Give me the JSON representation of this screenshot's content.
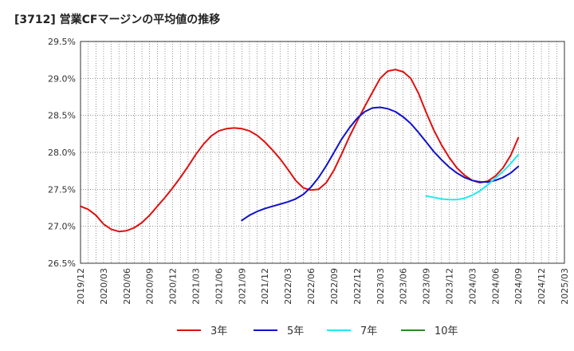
{
  "title": "[3712]  営業CFマージンの平均値の推移",
  "chart_data": {
    "type": "line",
    "title": "[3712]  営業CFマージンの平均値の推移",
    "xlabel": "",
    "ylabel": "",
    "ylim": [
      26.5,
      29.5
    ],
    "grid": true,
    "legend_position": "bottom",
    "x_ticks": [
      "2019/12",
      "2020/03",
      "2020/06",
      "2020/09",
      "2020/12",
      "2021/03",
      "2021/06",
      "2021/09",
      "2021/12",
      "2022/03",
      "2022/06",
      "2022/09",
      "2022/12",
      "2023/03",
      "2023/06",
      "2023/09",
      "2023/12",
      "2024/03",
      "2024/06",
      "2024/09",
      "2024/12",
      "2025/03"
    ],
    "y_ticks": [
      "26.5%",
      "27.0%",
      "27.5%",
      "28.0%",
      "28.5%",
      "29.0%",
      "29.5%"
    ],
    "y_tick_values": [
      26.5,
      27.0,
      27.5,
      28.0,
      28.5,
      29.0,
      29.5
    ],
    "series": [
      {
        "name": "3年",
        "color": "#dd1111",
        "x": [
          "2019/12",
          "2020/01",
          "2020/02",
          "2020/03",
          "2020/04",
          "2020/05",
          "2020/06",
          "2020/07",
          "2020/08",
          "2020/09",
          "2020/10",
          "2020/11",
          "2020/12",
          "2021/01",
          "2021/02",
          "2021/03",
          "2021/04",
          "2021/05",
          "2021/06",
          "2021/07",
          "2021/08",
          "2021/09",
          "2021/10",
          "2021/11",
          "2021/12",
          "2022/01",
          "2022/02",
          "2022/03",
          "2022/04",
          "2022/05",
          "2022/06",
          "2022/07",
          "2022/08",
          "2022/09",
          "2022/10",
          "2022/11",
          "2022/12",
          "2023/01",
          "2023/02",
          "2023/03",
          "2023/04",
          "2023/05",
          "2023/06",
          "2023/07",
          "2023/08",
          "2023/09",
          "2023/10",
          "2023/11",
          "2023/12",
          "2024/01",
          "2024/02",
          "2024/03",
          "2024/04",
          "2024/05",
          "2024/06",
          "2024/07",
          "2024/08",
          "2024/09"
        ],
        "values": [
          27.27,
          27.23,
          27.15,
          27.03,
          26.96,
          26.93,
          26.94,
          26.98,
          27.05,
          27.15,
          27.27,
          27.39,
          27.52,
          27.66,
          27.81,
          27.97,
          28.11,
          28.22,
          28.29,
          28.32,
          28.33,
          28.32,
          28.29,
          28.23,
          28.14,
          28.03,
          27.91,
          27.77,
          27.62,
          27.52,
          27.49,
          27.5,
          27.59,
          27.76,
          27.98,
          28.21,
          28.42,
          28.62,
          28.81,
          29.0,
          29.1,
          29.12,
          29.09,
          29.0,
          28.8,
          28.54,
          28.3,
          28.1,
          27.93,
          27.79,
          27.69,
          27.62,
          27.59,
          27.61,
          27.68,
          27.79,
          27.96,
          28.2
        ]
      },
      {
        "name": "5年",
        "color": "#1111cc",
        "x": [
          "2021/09",
          "2021/10",
          "2021/11",
          "2021/12",
          "2022/01",
          "2022/02",
          "2022/03",
          "2022/04",
          "2022/05",
          "2022/06",
          "2022/07",
          "2022/08",
          "2022/09",
          "2022/10",
          "2022/11",
          "2022/12",
          "2023/01",
          "2023/02",
          "2023/03",
          "2023/04",
          "2023/05",
          "2023/06",
          "2023/07",
          "2023/08",
          "2023/09",
          "2023/10",
          "2023/11",
          "2023/12",
          "2024/01",
          "2024/02",
          "2024/03",
          "2024/04",
          "2024/05",
          "2024/06",
          "2024/07",
          "2024/08",
          "2024/09"
        ],
        "values": [
          27.08,
          27.15,
          27.2,
          27.24,
          27.27,
          27.3,
          27.33,
          27.37,
          27.43,
          27.53,
          27.66,
          27.82,
          28.0,
          28.18,
          28.33,
          28.46,
          28.55,
          28.6,
          28.61,
          28.59,
          28.55,
          28.48,
          28.39,
          28.27,
          28.14,
          28.01,
          27.9,
          27.8,
          27.72,
          27.66,
          27.62,
          27.6,
          27.6,
          27.62,
          27.66,
          27.72,
          27.81
        ]
      },
      {
        "name": "7年",
        "color": "#22e8ee",
        "x": [
          "2023/09",
          "2023/10",
          "2023/11",
          "2023/12",
          "2024/01",
          "2024/02",
          "2024/03",
          "2024/04",
          "2024/05",
          "2024/06",
          "2024/07",
          "2024/08",
          "2024/09"
        ],
        "values": [
          27.41,
          27.39,
          27.37,
          27.36,
          27.36,
          27.38,
          27.42,
          27.48,
          27.56,
          27.65,
          27.74,
          27.85,
          27.97
        ]
      },
      {
        "name": "10年",
        "color": "#2a8a2a",
        "x": [],
        "values": []
      }
    ]
  }
}
